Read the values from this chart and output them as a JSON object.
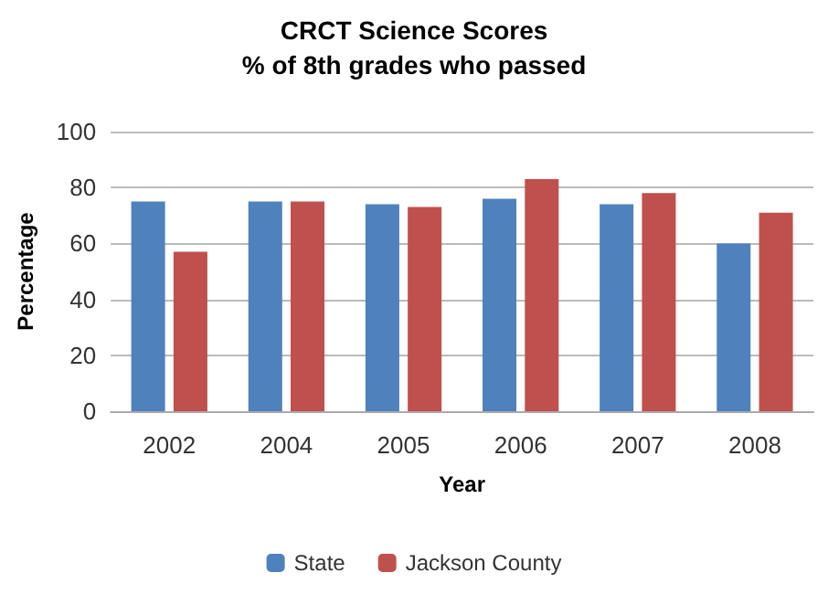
{
  "chart_data": {
    "type": "bar",
    "title": "CRCT Science Scores\n% of 8th grades who passed",
    "xlabel": "Year",
    "ylabel": "Percentage",
    "categories": [
      "2002",
      "2004",
      "2005",
      "2006",
      "2007",
      "2008"
    ],
    "series": [
      {
        "name": "State",
        "color": "#4f81bd",
        "values": [
          75,
          75,
          74,
          76,
          74,
          60
        ]
      },
      {
        "name": "Jackson County",
        "color": "#c0504d",
        "values": [
          57,
          75,
          73,
          83,
          78,
          71
        ]
      }
    ],
    "ylim": [
      0,
      100
    ],
    "yticks": [
      0,
      20,
      40,
      60,
      80,
      100
    ],
    "grid": "y",
    "legend": "bottom"
  }
}
